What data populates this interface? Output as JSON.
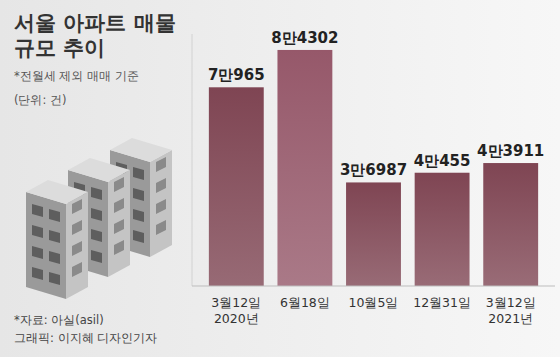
{
  "chart_data": {
    "type": "bar",
    "title": "서울 아파트 매물 규모 추이",
    "subtitle": "*전월세 제외 매매 기준",
    "annotations": [
      "(단위: 건)",
      "*자료: 아실(asil)",
      "그래픽: 이지혜 디자인기자"
    ],
    "categories": [
      "3월12일\n2020년",
      "6월18일",
      "10월5일",
      "12월31일",
      "3월12일\n2021년"
    ],
    "values": [
      70965,
      84302,
      36987,
      40455,
      43911
    ],
    "value_labels": [
      "7만965",
      "8만4302",
      "3만6987",
      "4만455",
      "4만3911"
    ],
    "colors": [
      "#7f4553",
      "#96586a",
      "#7f4553",
      "#7f4553",
      "#7f4553"
    ],
    "ylim": [
      0,
      90000
    ],
    "data_labels": true,
    "tick_labels": "x"
  }
}
